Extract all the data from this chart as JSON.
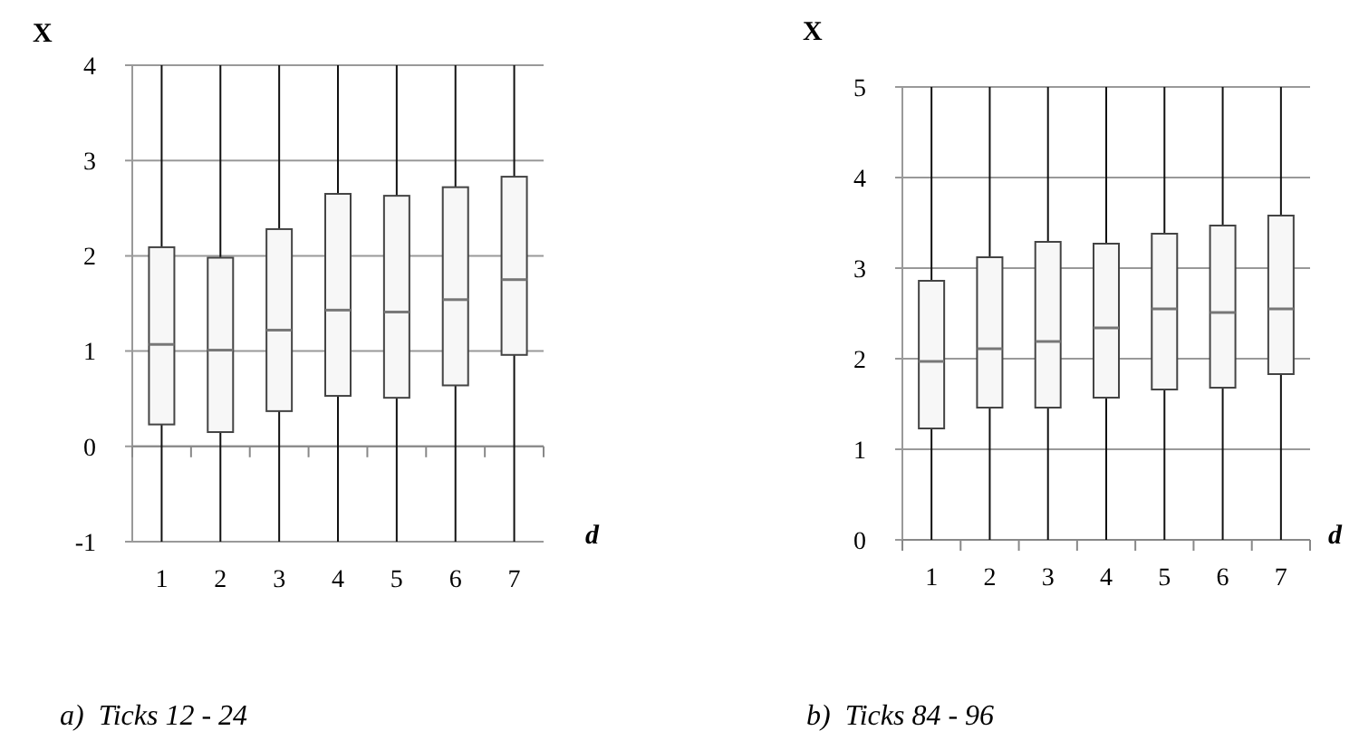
{
  "chart_data": [
    {
      "type": "box",
      "title": "a)  Ticks 12 - 24",
      "xlabel": "d",
      "ylabel": "X",
      "categories": [
        "1",
        "2",
        "3",
        "4",
        "5",
        "6",
        "7"
      ],
      "ylim": [
        -1,
        4
      ],
      "yticks": [
        -1,
        0,
        1,
        2,
        3,
        4
      ],
      "grid": "y",
      "boxes": [
        {
          "low": -1,
          "q1": 0.23,
          "median": 1.07,
          "q3": 2.09,
          "high": 4
        },
        {
          "low": -1,
          "q1": 0.15,
          "median": 1.01,
          "q3": 1.98,
          "high": 4
        },
        {
          "low": -1,
          "q1": 0.37,
          "median": 1.22,
          "q3": 2.28,
          "high": 4
        },
        {
          "low": -1,
          "q1": 0.53,
          "median": 1.43,
          "q3": 2.65,
          "high": 4
        },
        {
          "low": -1,
          "q1": 0.51,
          "median": 1.41,
          "q3": 2.63,
          "high": 4
        },
        {
          "low": -1,
          "q1": 0.64,
          "median": 1.54,
          "q3": 2.72,
          "high": 4
        },
        {
          "low": -1,
          "q1": 0.96,
          "median": 1.75,
          "q3": 2.83,
          "high": 4
        }
      ]
    },
    {
      "type": "box",
      "title": "b)  Ticks 84 - 96",
      "xlabel": "d",
      "ylabel": "X",
      "categories": [
        "1",
        "2",
        "3",
        "4",
        "5",
        "6",
        "7"
      ],
      "ylim": [
        0,
        5
      ],
      "yticks": [
        0,
        1,
        2,
        3,
        4,
        5
      ],
      "grid": "y",
      "boxes": [
        {
          "low": 0,
          "q1": 1.23,
          "median": 1.97,
          "q3": 2.86,
          "high": 5
        },
        {
          "low": 0,
          "q1": 1.46,
          "median": 2.11,
          "q3": 3.12,
          "high": 5
        },
        {
          "low": 0,
          "q1": 1.46,
          "median": 2.19,
          "q3": 3.29,
          "high": 5
        },
        {
          "low": 0,
          "q1": 1.57,
          "median": 2.34,
          "q3": 3.27,
          "high": 5
        },
        {
          "low": 0,
          "q1": 1.66,
          "median": 2.55,
          "q3": 3.38,
          "high": 5
        },
        {
          "low": 0,
          "q1": 1.68,
          "median": 2.51,
          "q3": 3.47,
          "high": 5
        },
        {
          "low": 0,
          "q1": 1.83,
          "median": 2.55,
          "q3": 3.58,
          "high": 5
        }
      ]
    }
  ]
}
